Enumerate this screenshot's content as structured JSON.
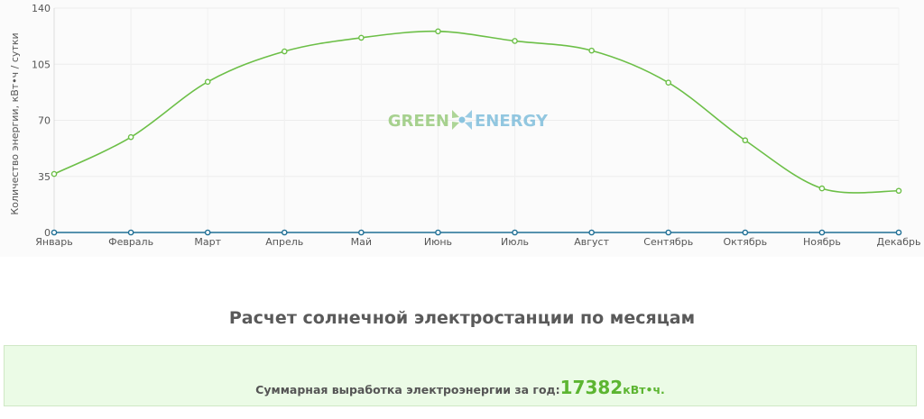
{
  "chart_data": {
    "type": "line",
    "categories": [
      "Январь",
      "Февраль",
      "Март",
      "Апрель",
      "Май",
      "Июнь",
      "Июль",
      "Август",
      "Сентябрь",
      "Октябрь",
      "Ноябрь",
      "Декабрь"
    ],
    "series": [
      {
        "values": [
          36.5,
          59.5,
          94,
          113,
          121.5,
          125.5,
          119.5,
          113.5,
          93.5,
          57.5,
          27.5,
          26
        ],
        "color": "#6cbf47"
      },
      {
        "values": [
          0,
          0,
          0,
          0,
          0,
          0,
          0,
          0,
          0,
          0,
          0,
          0
        ],
        "color": "#1f6f95"
      }
    ],
    "ylabel": "Количество энергии, кВт•ч / сутки",
    "yticks": [
      0,
      35,
      70,
      105,
      140
    ],
    "ylim": [
      0,
      140
    ],
    "grid": true,
    "watermark": {
      "left_text": "GREEN",
      "right_text": "ENERGY",
      "left_color": "#8bc46c",
      "right_color": "#6fb6d8"
    }
  },
  "section_title": "Расчет солнечной электростанции по месяцам",
  "summary": {
    "label": "Суммарная выработка электроэнергии за год:",
    "value": "17382",
    "unit": "кВт•ч."
  }
}
